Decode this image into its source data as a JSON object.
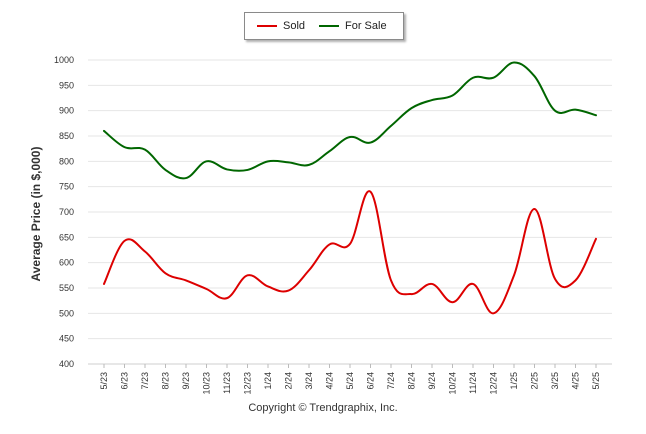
{
  "chart_data": {
    "type": "line",
    "title": "",
    "xlabel": "",
    "ylabel": "Average Price (in $,000)",
    "categories": [
      "5/23",
      "6/23",
      "7/23",
      "8/23",
      "9/23",
      "10/23",
      "11/23",
      "12/23",
      "1/24",
      "2/24",
      "3/24",
      "4/24",
      "5/24",
      "6/24",
      "7/24",
      "8/24",
      "9/24",
      "10/24",
      "11/24",
      "12/24",
      "1/25",
      "2/25",
      "3/25",
      "4/25",
      "5/25"
    ],
    "ylim": [
      400,
      1000
    ],
    "yticks": [
      400,
      450,
      500,
      550,
      600,
      650,
      700,
      750,
      800,
      850,
      900,
      950,
      1000
    ],
    "grid": true,
    "legend": "top-center",
    "series": [
      {
        "name": "Sold",
        "color": "#dd0000",
        "values": [
          558,
          643,
          622,
          579,
          565,
          548,
          530,
          575,
          553,
          545,
          585,
          636,
          637,
          740,
          565,
          538,
          558,
          522,
          558,
          500,
          575,
          706,
          568,
          565,
          647
        ]
      },
      {
        "name": "For Sale",
        "color": "#006600",
        "values": [
          860,
          828,
          823,
          783,
          767,
          800,
          784,
          783,
          800,
          798,
          793,
          820,
          848,
          837,
          870,
          905,
          921,
          930,
          965,
          965,
          995,
          968,
          900,
          902,
          891
        ]
      }
    ]
  },
  "legend": {
    "sold_label": "Sold",
    "for_sale_label": "For Sale",
    "sold_color": "#dd0000",
    "for_sale_color": "#006600"
  },
  "copyright": "Copyright © Trendgraphix, Inc."
}
